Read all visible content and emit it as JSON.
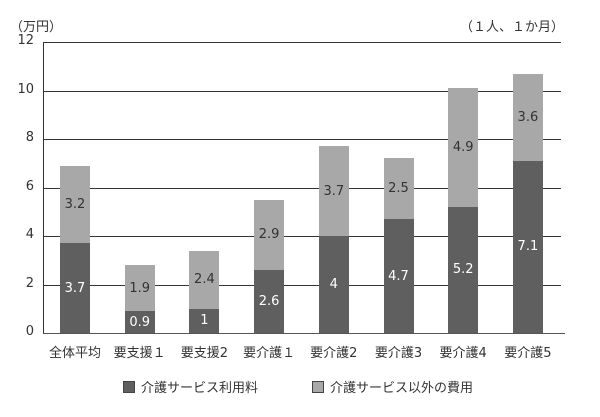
{
  "chart_data": {
    "type": "bar",
    "stacked": true,
    "title": "",
    "unit_label": "（万円）",
    "per_label": "（１人、１か月）",
    "xlabel": "",
    "ylabel": "万円",
    "ylim": [
      0,
      12
    ],
    "yticks": [
      "0",
      "2",
      "4",
      "6",
      "8",
      "10",
      "12"
    ],
    "grid": true,
    "legend_position": "bottom",
    "categories": [
      "全体平均",
      "要支援１",
      "要支援2",
      "要介護１",
      "要介護2",
      "要介護3",
      "要介護4",
      "要介護5"
    ],
    "series": [
      {
        "name": "介護サービス利用料",
        "color": "#5f5f5f",
        "values": [
          3.7,
          0.9,
          1,
          2.6,
          4,
          4.7,
          5.2,
          7.1
        ]
      },
      {
        "name": "介護サービス以外の費用",
        "color": "#a8a8a8",
        "values": [
          3.2,
          1.9,
          2.4,
          2.9,
          3.7,
          2.5,
          4.9,
          3.6
        ]
      }
    ],
    "value_labels": {
      "dark": [
        "3.7",
        "0.9",
        "1",
        "2.6",
        "4",
        "4.7",
        "5.2",
        "7.1"
      ],
      "light": [
        "3.2",
        "1.9",
        "2.4",
        "2.9",
        "3.7",
        "2.5",
        "4.9",
        "3.6"
      ]
    }
  }
}
